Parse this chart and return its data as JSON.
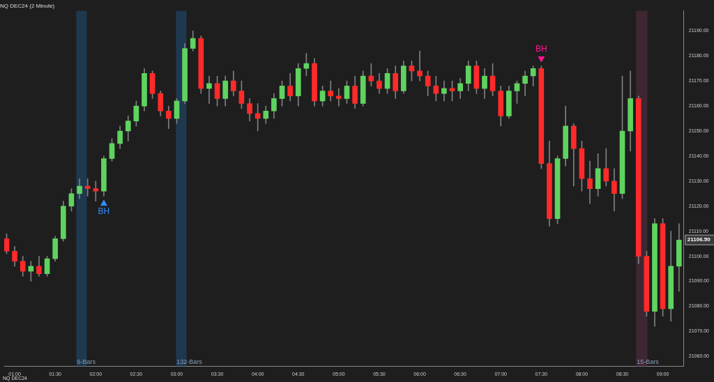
{
  "chart_data": {
    "type": "candlestick",
    "title": "NQ DEC24 (2 Minute)",
    "x": [
      0.9,
      1.0,
      1.1,
      1.2,
      1.3,
      1.4,
      1.5,
      1.6,
      1.7,
      1.8,
      1.9,
      2.0,
      2.1,
      2.2,
      2.3,
      2.4,
      2.5,
      2.6,
      2.7,
      2.8,
      2.9,
      3.0,
      3.1,
      3.2,
      3.3,
      3.4,
      3.5,
      3.6,
      3.7,
      3.8,
      3.9,
      4.0,
      4.1,
      4.2,
      4.3,
      4.4,
      4.5,
      4.6,
      4.7,
      4.8,
      4.9,
      5.0,
      5.1,
      5.2,
      5.3,
      5.4,
      5.5,
      5.6,
      5.7,
      5.8,
      5.9,
      6.0,
      6.1,
      6.2,
      6.3,
      6.4,
      6.5,
      6.6,
      6.7,
      6.8,
      6.9,
      7.0,
      7.1,
      7.2,
      7.3,
      7.4,
      7.5,
      7.6,
      7.7,
      7.8,
      7.9,
      8.0,
      8.1,
      8.2,
      8.3,
      8.4,
      8.5,
      8.6,
      8.7,
      8.8,
      8.9,
      9.0,
      9.1,
      9.2
    ],
    "ohlc": [
      [
        21107,
        21109,
        21101,
        21102
      ],
      [
        21102,
        21104,
        21096,
        21098
      ],
      [
        21098,
        21100,
        21092,
        21094
      ],
      [
        21094,
        21098,
        21090,
        21096
      ],
      [
        21096,
        21100,
        21092,
        21093
      ],
      [
        21093,
        21100,
        21092,
        21099
      ],
      [
        21099,
        21108,
        21098,
        21107
      ],
      [
        21107,
        21122,
        21106,
        21120
      ],
      [
        21120,
        21127,
        21118,
        21125
      ],
      [
        21125,
        21131,
        21123,
        21128
      ],
      [
        21128,
        21131,
        21124,
        21127
      ],
      [
        21127,
        21130,
        21122,
        21126
      ],
      [
        21126,
        21140,
        21124,
        21139
      ],
      [
        21139,
        21147,
        21138,
        21145
      ],
      [
        21145,
        21152,
        21143,
        21150
      ],
      [
        21150,
        21156,
        21146,
        21154
      ],
      [
        21154,
        21162,
        21152,
        21160
      ],
      [
        21160,
        21175,
        21158,
        21173
      ],
      [
        21173,
        21174,
        21163,
        21165
      ],
      [
        21165,
        21166,
        21156,
        21158
      ],
      [
        21158,
        21160,
        21151,
        21155
      ],
      [
        21155,
        21163,
        21153,
        21162
      ],
      [
        21162,
        21185,
        21161,
        21183
      ],
      [
        21183,
        21190,
        21182,
        21187
      ],
      [
        21187,
        21188,
        21165,
        21167
      ],
      [
        21167,
        21172,
        21161,
        21169
      ],
      [
        21169,
        21172,
        21160,
        21163
      ],
      [
        21163,
        21172,
        21160,
        21170
      ],
      [
        21170,
        21174,
        21164,
        21166
      ],
      [
        21166,
        21170,
        21159,
        21161
      ],
      [
        21161,
        21163,
        21154,
        21157
      ],
      [
        21157,
        21161,
        21150,
        21155
      ],
      [
        21155,
        21160,
        21153,
        21158
      ],
      [
        21158,
        21165,
        21155,
        21163
      ],
      [
        21163,
        21170,
        21160,
        21168
      ],
      [
        21168,
        21173,
        21162,
        21164
      ],
      [
        21164,
        21177,
        21160,
        21175
      ],
      [
        21175,
        21181,
        21172,
        21177
      ],
      [
        21177,
        21179,
        21160,
        21162
      ],
      [
        21162,
        21168,
        21160,
        21166
      ],
      [
        21166,
        21170,
        21162,
        21164
      ],
      [
        21164,
        21167,
        21160,
        21163
      ],
      [
        21163,
        21170,
        21161,
        21168
      ],
      [
        21168,
        21172,
        21159,
        21161
      ],
      [
        21161,
        21174,
        21160,
        21172
      ],
      [
        21172,
        21177,
        21168,
        21170
      ],
      [
        21170,
        21173,
        21165,
        21167
      ],
      [
        21167,
        21175,
        21165,
        21173
      ],
      [
        21173,
        21176,
        21163,
        21166
      ],
      [
        21166,
        21178,
        21165,
        21176
      ],
      [
        21176,
        21178,
        21170,
        21174
      ],
      [
        21174,
        21182,
        21170,
        21172
      ],
      [
        21172,
        21174,
        21164,
        21168
      ],
      [
        21168,
        21172,
        21162,
        21165
      ],
      [
        21165,
        21170,
        21162,
        21167
      ],
      [
        21167,
        21170,
        21162,
        21166
      ],
      [
        21166,
        21171,
        21163,
        21169
      ],
      [
        21169,
        21178,
        21166,
        21176
      ],
      [
        21176,
        21178,
        21165,
        21167
      ],
      [
        21167,
        21175,
        21163,
        21172
      ],
      [
        21172,
        21177,
        21164,
        21166
      ],
      [
        21166,
        21168,
        21152,
        21156
      ],
      [
        21156,
        21168,
        21155,
        21166
      ],
      [
        21166,
        21170,
        21161,
        21169
      ],
      [
        21169,
        21174,
        21164,
        21172
      ],
      [
        21172,
        21176,
        21168,
        21175
      ],
      [
        21175,
        21176,
        21135,
        21137
      ],
      [
        21137,
        21146,
        21112,
        21115
      ],
      [
        21115,
        21140,
        21113,
        21139
      ],
      [
        21139,
        21160,
        21136,
        21152
      ],
      [
        21152,
        21153,
        21128,
        21143
      ],
      [
        21143,
        21146,
        21126,
        21131
      ],
      [
        21131,
        21138,
        21121,
        21127
      ],
      [
        21127,
        21141,
        21124,
        21135
      ],
      [
        21135,
        21143,
        21128,
        21130
      ],
      [
        21130,
        21135,
        21118,
        21125
      ],
      [
        21125,
        21172,
        21123,
        21150
      ],
      [
        21150,
        21174,
        21142,
        21163
      ],
      [
        21163,
        21164,
        21097,
        21100
      ],
      [
        21100,
        21102,
        21076,
        21078
      ],
      [
        21078,
        21115,
        21072,
        21113
      ],
      [
        21113,
        21115,
        21076,
        21079
      ],
      [
        21079,
        21110,
        21074,
        21096
      ],
      [
        21096,
        21113,
        21086,
        21106.5
      ]
    ],
    "series": [
      {
        "type": "scatter",
        "name": "BH",
        "marker": "triangle",
        "color": "#2f8fff",
        "x": [
          2.1
        ],
        "values": [
          21121
        ]
      },
      {
        "type": "scatter",
        "name": "BH",
        "marker": "triangle",
        "color": "#ff1493",
        "x": [
          7.5
        ],
        "values": [
          21179
        ]
      }
    ],
    "bands": [
      {
        "axis": "x",
        "from": 1.76,
        "to": 1.89,
        "label": "6-Bars",
        "color": "#1f4e79"
      },
      {
        "axis": "x",
        "from": 2.99,
        "to": 3.12,
        "label": "132-Bars",
        "color": "#1f4e79"
      },
      {
        "axis": "x",
        "from": 8.67,
        "to": 8.81,
        "label": "15-Bars",
        "color": "#5a2f45"
      }
    ],
    "annotations": [
      {
        "text": "21106.50",
        "y": 21106.5
      },
      "NQ DEC24"
    ],
    "xlim": [
      0.87,
      9.26
    ],
    "ylim": [
      21056,
      21198
    ],
    "xticks": [
      {
        "value": 1,
        "label": "01:00"
      },
      {
        "value": 1.5,
        "label": "01:30"
      },
      {
        "value": 2,
        "label": "02:00"
      },
      {
        "value": 2.5,
        "label": "02:30"
      },
      {
        "value": 3,
        "label": "03:00"
      },
      {
        "value": 3.5,
        "label": "03:30"
      },
      {
        "value": 4,
        "label": "04:00"
      },
      {
        "value": 4.5,
        "label": "04:30"
      },
      {
        "value": 5,
        "label": "05:00"
      },
      {
        "value": 5.5,
        "label": "05:30"
      },
      {
        "value": 6,
        "label": "06:00"
      },
      {
        "value": 6.5,
        "label": "06:30"
      },
      {
        "value": 7,
        "label": "07:00"
      },
      {
        "value": 7.5,
        "label": "07:30"
      },
      {
        "value": 8,
        "label": "08:00"
      },
      {
        "value": 8.5,
        "label": "08:30"
      },
      {
        "value": 9,
        "label": "09:00"
      }
    ],
    "yticks": [
      {
        "value": 21060,
        "label": "21060.00"
      },
      {
        "value": 21070,
        "label": "21070.00"
      },
      {
        "value": 21080,
        "label": "21080.00"
      },
      {
        "value": 21090,
        "label": "21090.00"
      },
      {
        "value": 21100,
        "label": "21100.00"
      },
      {
        "value": 21110,
        "label": "21110.00"
      },
      {
        "value": 21120,
        "label": "21120.00"
      },
      {
        "value": 21130,
        "label": "21130.00"
      },
      {
        "value": 21140,
        "label": "21140.00"
      },
      {
        "value": 21150,
        "label": "21150.00"
      },
      {
        "value": 21160,
        "label": "21160.00"
      },
      {
        "value": 21170,
        "label": "21170.00"
      },
      {
        "value": 21180,
        "label": "21180.00"
      },
      {
        "value": 21190,
        "label": "21190.00"
      }
    ],
    "grid": false,
    "legend": false
  }
}
